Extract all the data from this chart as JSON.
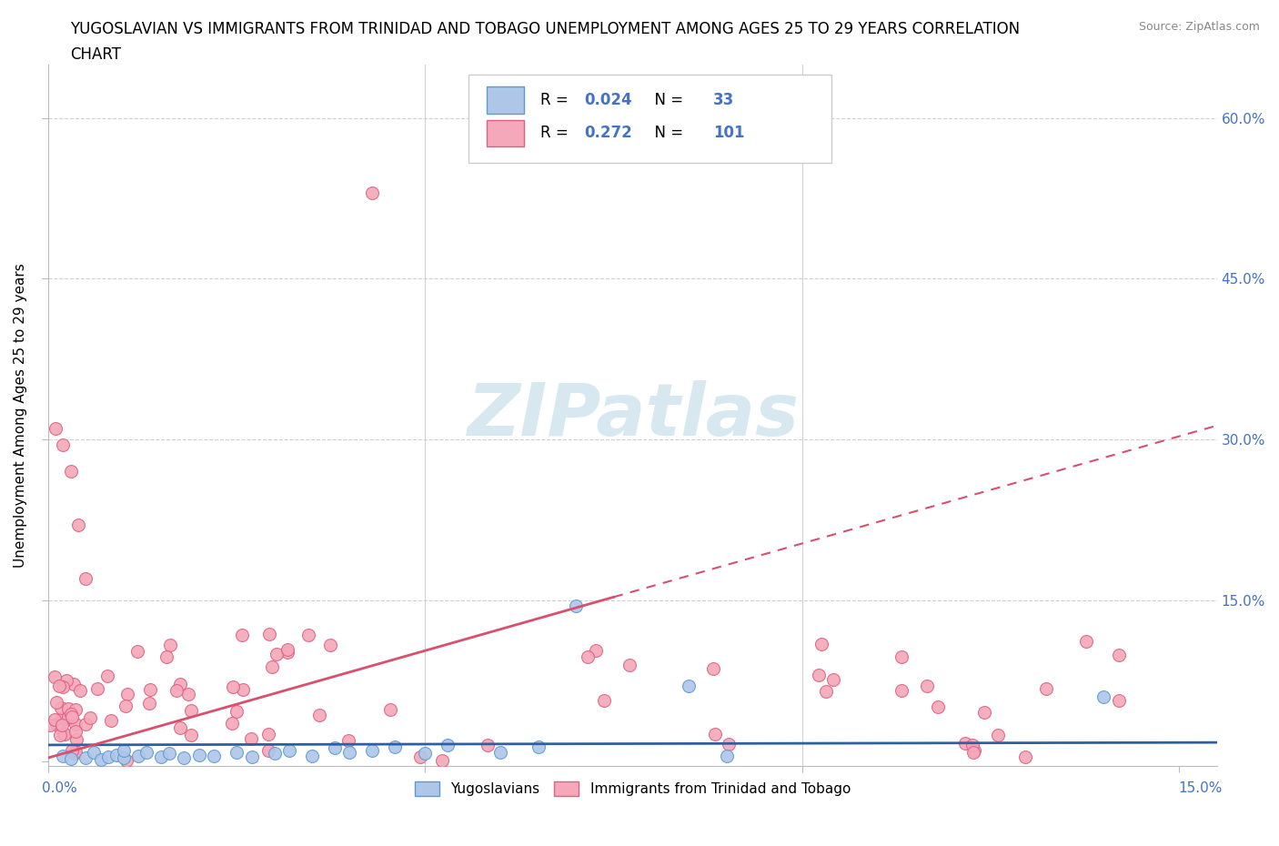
{
  "title_line1": "YUGOSLAVIAN VS IMMIGRANTS FROM TRINIDAD AND TOBAGO UNEMPLOYMENT AMONG AGES 25 TO 29 YEARS CORRELATION",
  "title_line2": "CHART",
  "source": "Source: ZipAtlas.com",
  "ylabel": "Unemployment Among Ages 25 to 29 years",
  "xlim": [
    0.0,
    0.155
  ],
  "ylim": [
    -0.005,
    0.65
  ],
  "yticks": [
    0.0,
    0.15,
    0.3,
    0.45,
    0.6
  ],
  "yticklabels": [
    "",
    "15.0%",
    "30.0%",
    "45.0%",
    "60.0%"
  ],
  "blue_R": 0.024,
  "blue_N": 33,
  "pink_R": 0.272,
  "pink_N": 101,
  "blue_color": "#aec6e8",
  "pink_color": "#f4a8ba",
  "blue_edge": "#5b9bd5",
  "pink_edge": "#e06080",
  "blue_trend_color": "#2e5fa3",
  "pink_trend_color": "#d94f6e",
  "watermark_color": "#d8e8f0",
  "grid_color": "#d0d0d0",
  "axis_color": "#bbbbbb",
  "label_color": "#4472c4",
  "title_fontsize": 12,
  "axis_label_fontsize": 11,
  "tick_label_fontsize": 11,
  "source_fontsize": 9
}
